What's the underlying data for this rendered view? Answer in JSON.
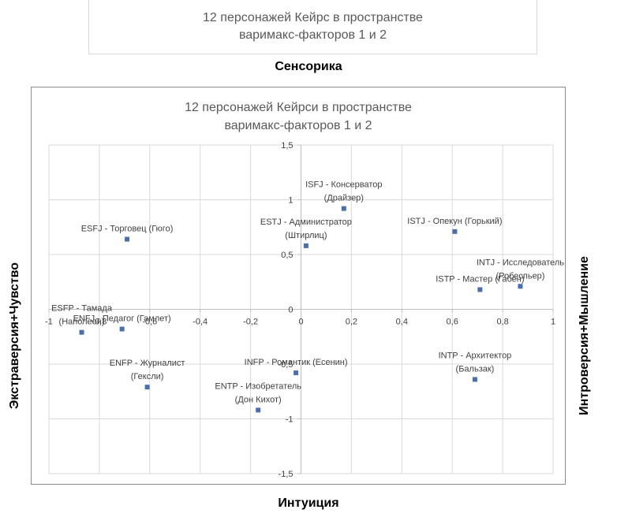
{
  "background_title": {
    "line1": "12 персонажей Кейрс в пространстве",
    "line2": "варимакс-факторов 1 и 2"
  },
  "axis_labels": {
    "top": "Сенсорика",
    "bottom": "Интуиция",
    "left": "Экстраверсия+Чувство",
    "right": "Интроверсия+Мышление"
  },
  "colors": {
    "marker": "#4a6fb0",
    "grid": "#d9d9d9",
    "axis": "#bfbfbf",
    "title": "#595959",
    "label": "#404040"
  },
  "chart_data": {
    "type": "scatter",
    "title_line1": "12 персонажей Кейрси в пространстве",
    "title_line2": "варимакс-факторов 1 и 2",
    "xlim": [
      -1,
      1
    ],
    "ylim": [
      -1.5,
      1.5
    ],
    "x_ticks": [
      "-1",
      "-0,8",
      "-0,6",
      "-0,4",
      "-0,2",
      "0",
      "0,2",
      "0,4",
      "0,6",
      "0,8",
      "1"
    ],
    "x_tick_values": [
      -1,
      -0.8,
      -0.6,
      -0.4,
      -0.2,
      0,
      0.2,
      0.4,
      0.6,
      0.8,
      1
    ],
    "y_ticks": [
      "1,5",
      "1",
      "0,5",
      "0",
      "-0,5",
      "-1",
      "-1,5"
    ],
    "y_tick_values": [
      1.5,
      1,
      0.5,
      0,
      -0.5,
      -1,
      -1.5
    ],
    "grid": true,
    "points": [
      {
        "lines": [
          "ISFJ - Консерватор",
          "(Драйзер)"
        ],
        "x": 0.17,
        "y": 0.92
      },
      {
        "lines": [
          "ESTJ - Администратор",
          "(Штирлиц)"
        ],
        "x": 0.02,
        "y": 0.58
      },
      {
        "lines": [
          "ISTJ - Опекун (Горький)"
        ],
        "x": 0.61,
        "y": 0.71
      },
      {
        "lines": [
          "ESFJ - Торговец (Гюго)"
        ],
        "x": -0.69,
        "y": 0.64
      },
      {
        "lines": [
          "INTJ - Исследователь",
          "(Робеспьер)"
        ],
        "x": 0.87,
        "y": 0.21
      },
      {
        "lines": [
          "ISTP - Мастер (Габен)"
        ],
        "x": 0.71,
        "y": 0.18
      },
      {
        "lines": [
          "ESFP - Тамада",
          "(Наполеон)"
        ],
        "x": -0.87,
        "y": -0.21
      },
      {
        "lines": [
          "ENFJ - Педагог (Гамлет)"
        ],
        "x": -0.71,
        "y": -0.18
      },
      {
        "lines": [
          "INFP - Романтик (Есенин)"
        ],
        "x": -0.02,
        "y": -0.58
      },
      {
        "lines": [
          "INTP - Архитектор",
          "(Бальзак)"
        ],
        "x": 0.69,
        "y": -0.64
      },
      {
        "lines": [
          "ENFP - Журналист",
          "(Гексли)"
        ],
        "x": -0.61,
        "y": -0.71
      },
      {
        "lines": [
          "ENTP - Изобретатель",
          "(Дон Кихот)"
        ],
        "x": -0.17,
        "y": -0.92
      }
    ]
  }
}
